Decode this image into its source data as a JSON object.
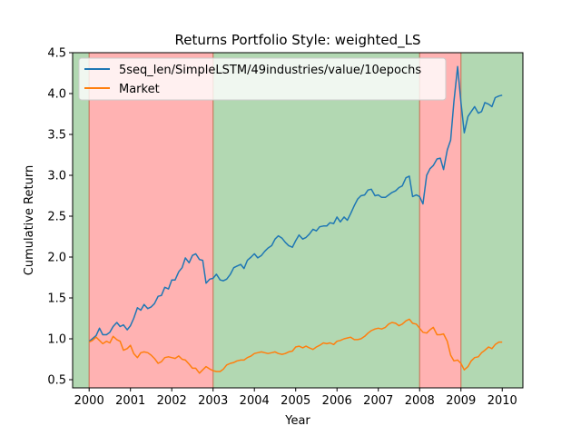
{
  "chart_data": {
    "type": "line",
    "title": "Returns Portfolio Style: weighted_LS",
    "xlabel": "Year",
    "ylabel": "Cumulative Return",
    "xlim": [
      1999.6,
      2010.5
    ],
    "ylim": [
      0.4,
      4.5
    ],
    "xticks": [
      2000,
      2001,
      2002,
      2003,
      2004,
      2005,
      2006,
      2007,
      2008,
      2009,
      2010
    ],
    "yticks": [
      0.5,
      1.0,
      1.5,
      2.0,
      2.5,
      3.0,
      3.5,
      4.0,
      4.5
    ],
    "grid": false,
    "legend_position": "top-left",
    "regions": [
      {
        "start": 1999.6,
        "end": 2000.0,
        "color": "#b2d8b2"
      },
      {
        "start": 2000.0,
        "end": 2003.0,
        "color": "#ffb2b2"
      },
      {
        "start": 2003.0,
        "end": 2008.0,
        "color": "#b2d8b2"
      },
      {
        "start": 2008.0,
        "end": 2009.0,
        "color": "#ffb2b2"
      },
      {
        "start": 2009.0,
        "end": 2010.5,
        "color": "#b2d8b2"
      }
    ],
    "region_boundaries": [
      2000.0,
      2003.0,
      2008.0,
      2009.0
    ],
    "series": [
      {
        "name": "5seq_len/SimpleLSTM/49industries/value/10epochs",
        "color": "#1f77b4",
        "x": [
          2000.0,
          2000.08,
          2000.17,
          2000.25,
          2000.33,
          2000.42,
          2000.5,
          2000.58,
          2000.67,
          2000.75,
          2000.83,
          2000.92,
          2001.0,
          2001.08,
          2001.17,
          2001.25,
          2001.33,
          2001.42,
          2001.5,
          2001.58,
          2001.67,
          2001.75,
          2001.83,
          2001.92,
          2002.0,
          2002.08,
          2002.17,
          2002.25,
          2002.33,
          2002.42,
          2002.5,
          2002.58,
          2002.67,
          2002.75,
          2002.83,
          2002.92,
          2003.0,
          2003.08,
          2003.17,
          2003.25,
          2003.33,
          2003.42,
          2003.5,
          2003.58,
          2003.67,
          2003.75,
          2003.83,
          2003.92,
          2004.0,
          2004.08,
          2004.17,
          2004.25,
          2004.33,
          2004.42,
          2004.5,
          2004.58,
          2004.67,
          2004.75,
          2004.83,
          2004.92,
          2005.0,
          2005.08,
          2005.17,
          2005.25,
          2005.33,
          2005.42,
          2005.5,
          2005.58,
          2005.67,
          2005.75,
          2005.83,
          2005.92,
          2006.0,
          2006.08,
          2006.17,
          2006.25,
          2006.33,
          2006.42,
          2006.5,
          2006.58,
          2006.67,
          2006.75,
          2006.83,
          2006.92,
          2007.0,
          2007.08,
          2007.17,
          2007.25,
          2007.33,
          2007.42,
          2007.5,
          2007.58,
          2007.67,
          2007.75,
          2007.83,
          2007.92,
          2008.0,
          2008.08,
          2008.17,
          2008.25,
          2008.33,
          2008.42,
          2008.5,
          2008.58,
          2008.67,
          2008.75,
          2008.83,
          2008.92,
          2009.0,
          2009.08,
          2009.17,
          2009.25,
          2009.33,
          2009.42,
          2009.5,
          2009.58,
          2009.67,
          2009.75,
          2009.83,
          2009.92,
          2010.0
        ],
        "values": [
          0.97,
          1.0,
          1.04,
          1.13,
          1.05,
          1.05,
          1.08,
          1.15,
          1.2,
          1.15,
          1.17,
          1.11,
          1.16,
          1.25,
          1.38,
          1.35,
          1.42,
          1.37,
          1.39,
          1.43,
          1.52,
          1.53,
          1.63,
          1.61,
          1.72,
          1.72,
          1.82,
          1.87,
          1.99,
          1.93,
          2.02,
          2.04,
          1.97,
          1.96,
          1.68,
          1.73,
          1.74,
          1.79,
          1.72,
          1.71,
          1.73,
          1.79,
          1.87,
          1.89,
          1.91,
          1.86,
          1.96,
          2.0,
          2.04,
          1.99,
          2.02,
          2.07,
          2.11,
          2.14,
          2.22,
          2.26,
          2.23,
          2.18,
          2.14,
          2.12,
          2.2,
          2.27,
          2.22,
          2.24,
          2.28,
          2.34,
          2.32,
          2.37,
          2.38,
          2.38,
          2.42,
          2.41,
          2.49,
          2.43,
          2.49,
          2.45,
          2.53,
          2.63,
          2.71,
          2.75,
          2.76,
          2.82,
          2.83,
          2.75,
          2.76,
          2.73,
          2.73,
          2.76,
          2.79,
          2.81,
          2.85,
          2.87,
          2.97,
          2.99,
          2.74,
          2.76,
          2.74,
          2.65,
          3.0,
          3.08,
          3.12,
          3.2,
          3.21,
          3.07,
          3.31,
          3.43,
          3.9,
          4.33,
          3.9,
          3.52,
          3.72,
          3.78,
          3.84,
          3.76,
          3.78,
          3.89,
          3.87,
          3.84,
          3.95,
          3.97,
          3.98
        ]
      },
      {
        "name": "Market",
        "color": "#ff7f0e",
        "x": [
          2000.0,
          2000.08,
          2000.17,
          2000.25,
          2000.33,
          2000.42,
          2000.5,
          2000.58,
          2000.67,
          2000.75,
          2000.83,
          2000.92,
          2001.0,
          2001.08,
          2001.17,
          2001.25,
          2001.33,
          2001.42,
          2001.5,
          2001.58,
          2001.67,
          2001.75,
          2001.83,
          2001.92,
          2002.0,
          2002.08,
          2002.17,
          2002.25,
          2002.33,
          2002.42,
          2002.5,
          2002.58,
          2002.67,
          2002.75,
          2002.83,
          2002.92,
          2003.0,
          2003.08,
          2003.17,
          2003.25,
          2003.33,
          2003.42,
          2003.5,
          2003.58,
          2003.67,
          2003.75,
          2003.83,
          2003.92,
          2004.0,
          2004.08,
          2004.17,
          2004.25,
          2004.33,
          2004.42,
          2004.5,
          2004.58,
          2004.67,
          2004.75,
          2004.83,
          2004.92,
          2005.0,
          2005.08,
          2005.17,
          2005.25,
          2005.33,
          2005.42,
          2005.5,
          2005.58,
          2005.67,
          2005.75,
          2005.83,
          2005.92,
          2006.0,
          2006.08,
          2006.17,
          2006.25,
          2006.33,
          2006.42,
          2006.5,
          2006.58,
          2006.67,
          2006.75,
          2006.83,
          2006.92,
          2007.0,
          2007.08,
          2007.17,
          2007.25,
          2007.33,
          2007.42,
          2007.5,
          2007.58,
          2007.67,
          2007.75,
          2007.83,
          2007.92,
          2008.0,
          2008.08,
          2008.17,
          2008.25,
          2008.33,
          2008.42,
          2008.5,
          2008.58,
          2008.67,
          2008.75,
          2008.83,
          2008.92,
          2009.0,
          2009.08,
          2009.17,
          2009.25,
          2009.33,
          2009.42,
          2009.5,
          2009.58,
          2009.67,
          2009.75,
          2009.83,
          2009.92,
          2010.0
        ],
        "values": [
          0.96,
          0.98,
          1.02,
          0.98,
          0.94,
          0.97,
          0.95,
          1.03,
          0.99,
          0.97,
          0.86,
          0.88,
          0.92,
          0.82,
          0.77,
          0.83,
          0.84,
          0.83,
          0.8,
          0.76,
          0.7,
          0.72,
          0.77,
          0.78,
          0.77,
          0.76,
          0.79,
          0.75,
          0.74,
          0.69,
          0.64,
          0.64,
          0.58,
          0.62,
          0.66,
          0.63,
          0.61,
          0.6,
          0.6,
          0.63,
          0.68,
          0.7,
          0.71,
          0.73,
          0.74,
          0.74,
          0.77,
          0.79,
          0.82,
          0.83,
          0.84,
          0.83,
          0.82,
          0.83,
          0.84,
          0.82,
          0.81,
          0.82,
          0.84,
          0.85,
          0.9,
          0.91,
          0.89,
          0.91,
          0.89,
          0.87,
          0.9,
          0.92,
          0.95,
          0.94,
          0.95,
          0.93,
          0.97,
          0.98,
          1.0,
          1.01,
          1.02,
          0.99,
          0.99,
          1.0,
          1.03,
          1.07,
          1.1,
          1.12,
          1.13,
          1.12,
          1.14,
          1.18,
          1.2,
          1.19,
          1.16,
          1.18,
          1.22,
          1.24,
          1.19,
          1.18,
          1.13,
          1.08,
          1.07,
          1.11,
          1.14,
          1.05,
          1.05,
          1.06,
          0.97,
          0.8,
          0.73,
          0.74,
          0.7,
          0.62,
          0.66,
          0.73,
          0.77,
          0.78,
          0.83,
          0.86,
          0.9,
          0.88,
          0.93,
          0.96,
          0.96
        ]
      }
    ]
  }
}
